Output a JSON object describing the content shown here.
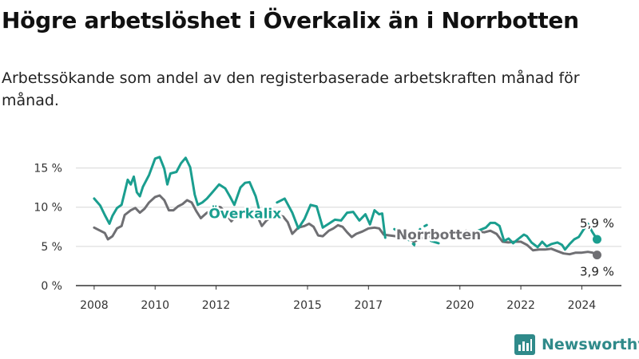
{
  "title": "Högre arbetslöshet i Överkalix än i Norrbotten",
  "subtitle": "Arbetssökande som andel av den registerbaserade arbetskraften månad för månad.",
  "brand": {
    "name": "Newsworthy",
    "icon": "bar-chart-logo-icon",
    "color": "#2f8a8a"
  },
  "chart_data": {
    "type": "line",
    "y_ticks": [
      {
        "value": 0,
        "label": "0 %"
      },
      {
        "value": 5,
        "label": "5 %"
      },
      {
        "value": 10,
        "label": "10 %"
      },
      {
        "value": 15,
        "label": "15 %"
      }
    ],
    "x_ticks": [
      {
        "value": 2008,
        "label": "2008"
      },
      {
        "value": 2010,
        "label": "2010"
      },
      {
        "value": 2012,
        "label": "2012"
      },
      {
        "value": 2015,
        "label": "2015"
      },
      {
        "value": 2017,
        "label": "2017"
      },
      {
        "value": 2020,
        "label": "2020"
      },
      {
        "value": 2022,
        "label": "2022"
      },
      {
        "value": 2024,
        "label": "2024"
      }
    ],
    "ylim": [
      0,
      17.5
    ],
    "xlim": [
      2007.4,
      2025.3
    ],
    "grid": true,
    "series": [
      {
        "name": "Överkalix",
        "color": "#1a9e8f",
        "end_label": "5,9 %",
        "points": [
          [
            2008.0,
            11.1
          ],
          [
            2008.2,
            10.2
          ],
          [
            2008.35,
            9.0
          ],
          [
            2008.5,
            7.9
          ],
          [
            2008.6,
            8.9
          ],
          [
            2008.75,
            9.9
          ],
          [
            2008.9,
            10.3
          ],
          [
            2009.0,
            11.9
          ],
          [
            2009.1,
            13.5
          ],
          [
            2009.2,
            12.9
          ],
          [
            2009.3,
            13.9
          ],
          [
            2009.4,
            11.9
          ],
          [
            2009.5,
            11.4
          ],
          [
            2009.6,
            12.6
          ],
          [
            2009.8,
            14.1
          ],
          [
            2010.0,
            16.2
          ],
          [
            2010.15,
            16.4
          ],
          [
            2010.3,
            14.9
          ],
          [
            2010.4,
            12.9
          ],
          [
            2010.5,
            14.3
          ],
          [
            2010.7,
            14.5
          ],
          [
            2010.85,
            15.6
          ],
          [
            2011.0,
            16.3
          ],
          [
            2011.15,
            15.1
          ],
          [
            2011.3,
            11.6
          ],
          [
            2011.4,
            10.3
          ],
          [
            2011.55,
            10.6
          ],
          [
            2011.7,
            11.1
          ],
          [
            2011.9,
            12.0
          ],
          [
            2012.1,
            12.9
          ],
          [
            2012.3,
            12.4
          ],
          [
            2012.45,
            11.4
          ],
          [
            2012.6,
            10.3
          ],
          [
            2012.8,
            12.5
          ],
          [
            2012.95,
            13.1
          ],
          [
            2013.1,
            13.2
          ],
          [
            2013.3,
            11.4
          ],
          [
            2013.4,
            9.9
          ],
          [
            null,
            null
          ],
          [
            2014.0,
            10.6
          ],
          [
            2014.25,
            11.1
          ],
          [
            2014.5,
            9.3
          ],
          [
            2014.7,
            7.3
          ],
          [
            2014.9,
            8.5
          ],
          [
            2015.1,
            10.3
          ],
          [
            2015.3,
            10.1
          ],
          [
            2015.5,
            7.4
          ],
          [
            2015.7,
            7.9
          ],
          [
            2015.9,
            8.4
          ],
          [
            2016.1,
            8.3
          ],
          [
            2016.3,
            9.3
          ],
          [
            2016.5,
            9.4
          ],
          [
            2016.7,
            8.3
          ],
          [
            2016.9,
            9.1
          ],
          [
            2017.05,
            7.8
          ],
          [
            2017.2,
            9.6
          ],
          [
            2017.35,
            9.1
          ],
          [
            2017.45,
            9.2
          ],
          [
            2017.55,
            6.1
          ],
          [
            null,
            null
          ],
          [
            2019.05,
            5.7
          ],
          [
            2019.3,
            5.4
          ],
          [
            null,
            null
          ],
          [
            2020.6,
            7.0
          ],
          [
            2020.85,
            7.4
          ],
          [
            2021.0,
            8.0
          ],
          [
            2021.15,
            8.0
          ],
          [
            2021.3,
            7.6
          ],
          [
            2021.45,
            5.7
          ],
          [
            2021.6,
            6.0
          ],
          [
            2021.75,
            5.4
          ],
          [
            2021.9,
            5.9
          ],
          [
            2022.1,
            6.5
          ],
          [
            2022.2,
            6.3
          ],
          [
            2022.35,
            5.5
          ],
          [
            2022.55,
            4.9
          ],
          [
            2022.7,
            5.6
          ],
          [
            2022.85,
            5.0
          ],
          [
            2023.0,
            5.3
          ],
          [
            2023.2,
            5.5
          ],
          [
            2023.35,
            5.2
          ],
          [
            2023.45,
            4.6
          ],
          [
            2023.6,
            5.3
          ],
          [
            2023.75,
            5.9
          ],
          [
            2023.9,
            6.2
          ],
          [
            2024.05,
            7.1
          ],
          [
            2024.2,
            7.9
          ],
          [
            2024.35,
            6.8
          ],
          [
            2024.5,
            5.9
          ]
        ],
        "dotted": [
          [
            2017.85,
            7.2
          ],
          [
            2018.05,
            6.8
          ],
          [
            2018.3,
            5.9
          ],
          [
            2018.5,
            5.2
          ],
          [
            2018.7,
            7.3
          ],
          [
            2018.95,
            7.8
          ]
        ]
      },
      {
        "name": "Norrbotten",
        "color": "#6f6f73",
        "end_label": "3,9 %",
        "points": [
          [
            2008.0,
            7.4
          ],
          [
            2008.2,
            7.0
          ],
          [
            2008.35,
            6.7
          ],
          [
            2008.45,
            5.9
          ],
          [
            2008.6,
            6.3
          ],
          [
            2008.75,
            7.3
          ],
          [
            2008.9,
            7.6
          ],
          [
            2009.0,
            9.0
          ],
          [
            2009.2,
            9.6
          ],
          [
            2009.35,
            9.9
          ],
          [
            2009.5,
            9.3
          ],
          [
            2009.65,
            9.8
          ],
          [
            2009.8,
            10.6
          ],
          [
            2010.0,
            11.3
          ],
          [
            2010.15,
            11.5
          ],
          [
            2010.3,
            10.9
          ],
          [
            2010.45,
            9.6
          ],
          [
            2010.6,
            9.6
          ],
          [
            2010.75,
            10.1
          ],
          [
            2010.9,
            10.4
          ],
          [
            2011.05,
            10.9
          ],
          [
            2011.2,
            10.6
          ],
          [
            2011.35,
            9.5
          ],
          [
            2011.5,
            8.6
          ],
          [
            2011.7,
            9.3
          ],
          [
            2011.9,
            9.6
          ],
          [
            2012.0,
            10.1
          ],
          [
            2012.15,
            10.0
          ],
          [
            2012.3,
            9.3
          ],
          [
            2012.5,
            8.2
          ],
          [
            2012.7,
            9.1
          ],
          [
            2012.9,
            9.6
          ],
          [
            2013.05,
            9.8
          ],
          [
            2013.2,
            9.6
          ],
          [
            2013.35,
            8.9
          ],
          [
            2013.5,
            7.6
          ],
          [
            2013.65,
            8.3
          ],
          [
            2013.85,
            8.8
          ],
          [
            2014.0,
            9.0
          ],
          [
            2014.2,
            8.8
          ],
          [
            2014.35,
            8.1
          ],
          [
            2014.5,
            6.6
          ],
          [
            2014.7,
            7.4
          ],
          [
            2014.9,
            7.6
          ],
          [
            2015.05,
            7.9
          ],
          [
            2015.2,
            7.5
          ],
          [
            2015.35,
            6.4
          ],
          [
            2015.5,
            6.3
          ],
          [
            2015.7,
            7.0
          ],
          [
            2015.85,
            7.3
          ],
          [
            2016.0,
            7.7
          ],
          [
            2016.15,
            7.5
          ],
          [
            2016.3,
            6.8
          ],
          [
            2016.45,
            6.2
          ],
          [
            2016.6,
            6.6
          ],
          [
            2016.8,
            6.9
          ],
          [
            2017.0,
            7.3
          ],
          [
            2017.2,
            7.4
          ],
          [
            2017.35,
            7.3
          ],
          [
            2017.5,
            6.5
          ],
          [
            2017.7,
            6.4
          ],
          [
            2017.9,
            6.3
          ],
          [
            2018.1,
            6.3
          ],
          [
            2018.3,
            6.0
          ],
          [
            2018.5,
            5.6
          ],
          [
            2018.7,
            6.0
          ],
          [
            2018.9,
            6.2
          ],
          [
            2019.1,
            6.3
          ],
          [
            2019.3,
            6.1
          ],
          [
            2019.5,
            6.0
          ],
          [
            2019.8,
            6.1
          ],
          [
            2020.0,
            6.3
          ],
          [
            2020.2,
            7.0
          ],
          [
            2020.4,
            6.8
          ],
          [
            2020.6,
            6.9
          ],
          [
            2020.8,
            6.8
          ],
          [
            2021.0,
            7.0
          ],
          [
            2021.2,
            6.6
          ],
          [
            2021.4,
            5.6
          ],
          [
            2021.6,
            5.5
          ],
          [
            2021.8,
            5.6
          ],
          [
            2022.0,
            5.6
          ],
          [
            2022.2,
            5.2
          ],
          [
            2022.4,
            4.5
          ],
          [
            2022.6,
            4.6
          ],
          [
            2022.8,
            4.6
          ],
          [
            2023.0,
            4.7
          ],
          [
            2023.2,
            4.4
          ],
          [
            2023.4,
            4.1
          ],
          [
            2023.6,
            4.0
          ],
          [
            2023.8,
            4.2
          ],
          [
            2024.0,
            4.2
          ],
          [
            2024.2,
            4.3
          ],
          [
            2024.35,
            4.2
          ],
          [
            2024.5,
            3.9
          ]
        ]
      }
    ],
    "inline_labels": [
      {
        "series": 0,
        "text": "Överkalix",
        "x": 2012.95,
        "y": 9.2
      },
      {
        "series": 1,
        "text": "Norrbotten",
        "x": 2019.3,
        "y": 6.5
      }
    ]
  }
}
